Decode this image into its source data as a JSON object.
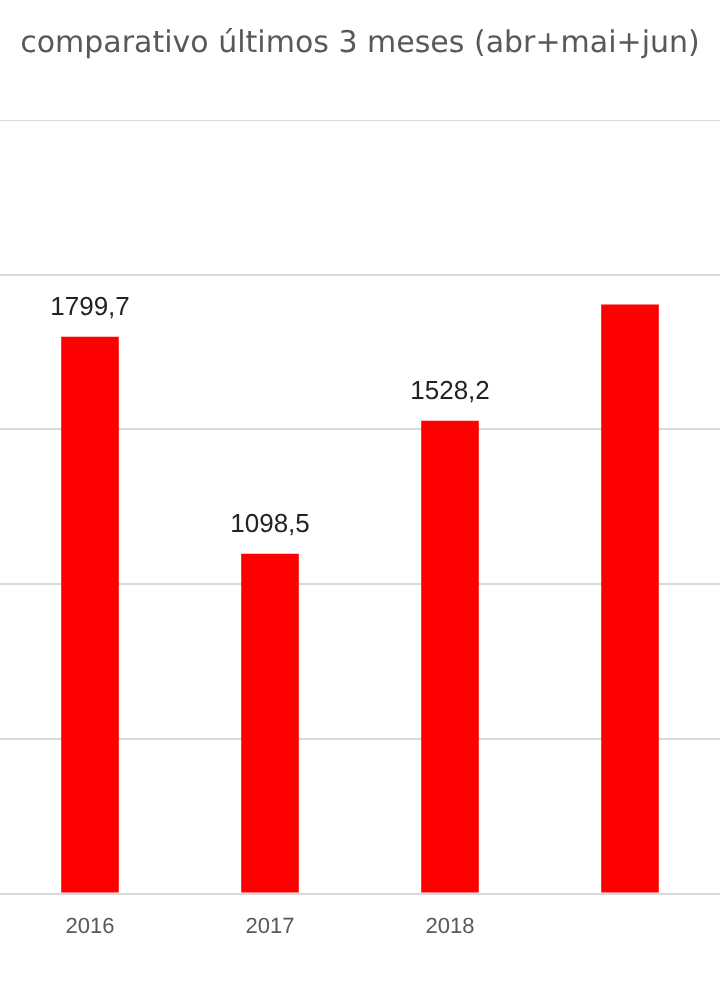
{
  "chart_data": {
    "type": "bar",
    "title": "comparativo últimos 3 meses (abr+mai+jun)",
    "categories": [
      "2016",
      "2017",
      "2018",
      null
    ],
    "values": [
      1799.7,
      1098.5,
      1528.2,
      1904
    ],
    "value_labels": [
      "1799,7",
      "1098,5",
      "1528,2",
      null
    ],
    "color": "#ff0000",
    "ylim": [
      0,
      2500
    ],
    "grid": "y",
    "tick_labels": "x",
    "legend": false
  }
}
